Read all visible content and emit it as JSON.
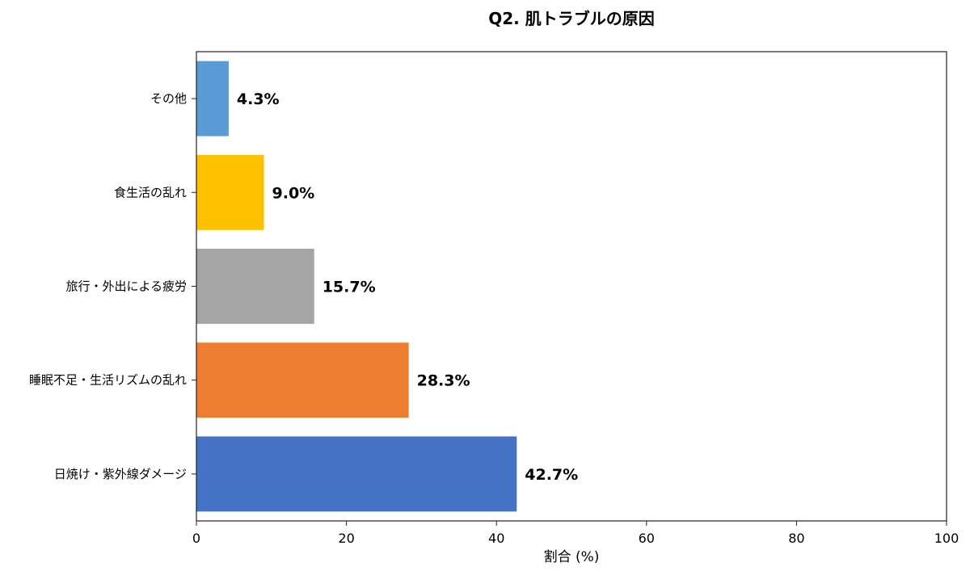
{
  "chart_data": {
    "type": "bar",
    "orientation": "horizontal",
    "title": "Q2. 肌トラブルの原因",
    "xlabel": "割合 (%)",
    "ylabel": "",
    "xlim": [
      0,
      100
    ],
    "xticks": [
      "0",
      "20",
      "40",
      "60",
      "80",
      "100"
    ],
    "grid": false,
    "categories": [
      "その他",
      "食生活の乱れ",
      "旅行・外出による疲労",
      "睡眠不足・生活リズムの乱れ",
      "日焼け・紫外線ダメージ"
    ],
    "values": [
      4.3,
      9.0,
      15.7,
      28.3,
      42.7
    ],
    "value_labels": [
      "4.3%",
      "9.0%",
      "15.7%",
      "28.3%",
      "42.7%"
    ],
    "colors": [
      "#5B9BD5",
      "#FFC000",
      "#A5A5A5",
      "#ED7D31",
      "#4472C4"
    ]
  }
}
